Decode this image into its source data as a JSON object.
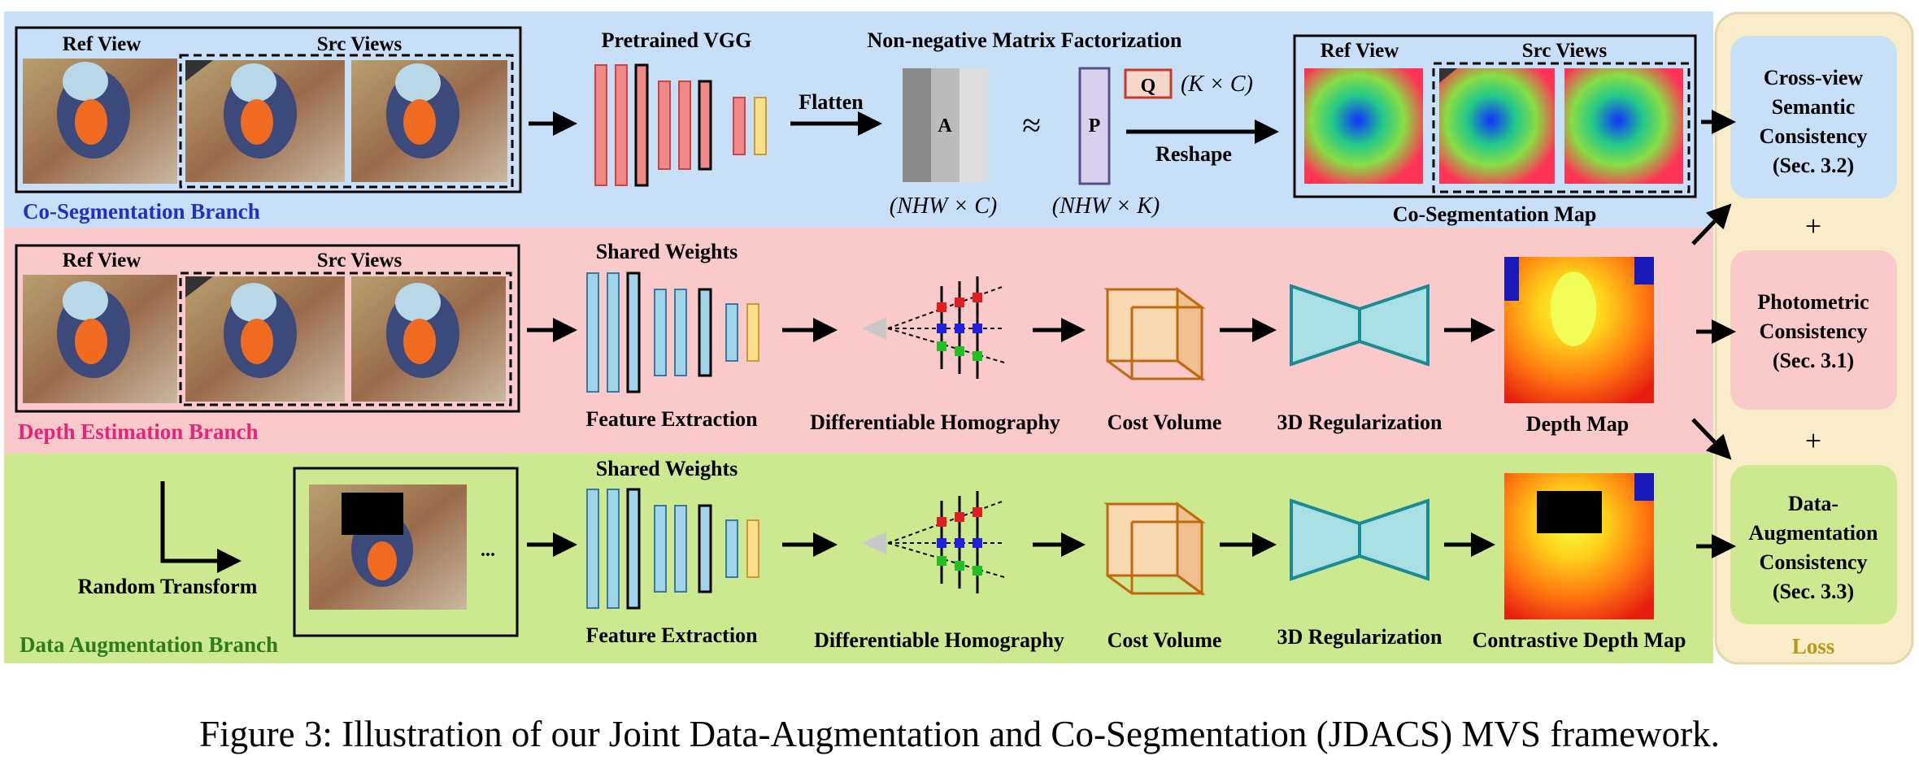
{
  "caption": "Figure 3: Illustration of our Joint Data-Augmentation and Co-Segmentation (JDACS) MVS framework.",
  "branches": {
    "coseg": "Co-Segmentation Branch",
    "depth": "Depth Estimation Branch",
    "aug": "Data Augmentation Branch"
  },
  "views": {
    "ref": "Ref View",
    "src": "Src Views"
  },
  "coseg": {
    "vgg": "Pretrained VGG",
    "nmf": "Non-negative Matrix Factorization",
    "flatten": "Flatten",
    "matrix_a": "A",
    "approx": "≈",
    "matrix_p": "P",
    "matrix_q": "Q",
    "q_dim": "(K × C)",
    "a_dim": "(NHW × C)",
    "p_dim": "(NHW × K)",
    "reshape": "Reshape",
    "map_label": "Co-Segmentation Map"
  },
  "depth": {
    "shared": "Shared Weights",
    "feat": "Feature Extraction",
    "homo": "Differentiable Homography",
    "cost": "Cost Volume",
    "reg": "3D Regularization",
    "map": "Depth Map"
  },
  "aug": {
    "random": "Random Transform",
    "dots": "...",
    "shared": "Shared Weights",
    "feat": "Feature Extraction",
    "homo": "Differentiable Homography",
    "cost": "Cost Volume",
    "reg": "3D Regularization",
    "map": "Contrastive Depth Map"
  },
  "loss": {
    "title": "Loss",
    "cross": [
      "Cross-view",
      "Semantic",
      "Consistency",
      "(Sec. 3.2)"
    ],
    "photo": [
      "Photometric",
      "Consistency",
      "(Sec. 3.1)"
    ],
    "data": [
      "Data-",
      "Augmentation",
      "Consistency",
      "(Sec. 3.3)"
    ],
    "plus": "+"
  },
  "colors": {
    "coseg_bg": "#c7e0f8",
    "depth_bg": "#fac9ca",
    "aug_bg": "#cde98f",
    "loss_bg": "#f8edc8",
    "coseg_label": "#1f2fc8",
    "depth_label": "#e8237a",
    "aug_label": "#2f7a1f",
    "loss_label": "#b59a1a"
  }
}
